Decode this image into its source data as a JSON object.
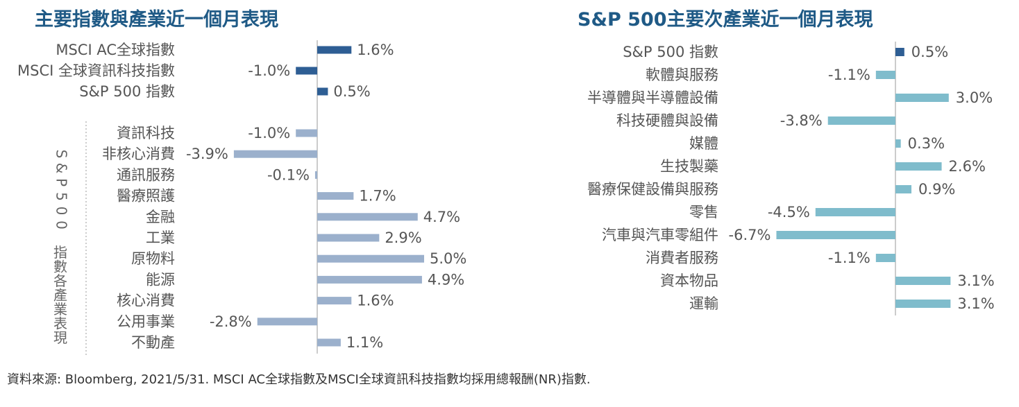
{
  "charts": {
    "left": {
      "title": "主要指數與產業近一個月表現",
      "side_label": "S&P500 指數各產業表現",
      "index_items": [
        {
          "label": "MSCI AC全球指數",
          "value": 1.6,
          "text": "1.6%"
        },
        {
          "label": "MSCI 全球資訊科技指數",
          "value": -1.0,
          "text": "-1.0%"
        },
        {
          "label": "S&P 500 指數",
          "value": 0.5,
          "text": "0.5%"
        }
      ],
      "sector_items": [
        {
          "label": "資訊科技",
          "value": -1.0,
          "text": "-1.0%"
        },
        {
          "label": "非核心消費",
          "value": -3.9,
          "text": "-3.9%"
        },
        {
          "label": "通訊服務",
          "value": -0.1,
          "text": "-0.1%"
        },
        {
          "label": "醫療照護",
          "value": 1.7,
          "text": "1.7%"
        },
        {
          "label": "金融",
          "value": 4.7,
          "text": "4.7%"
        },
        {
          "label": "工業",
          "value": 2.9,
          "text": "2.9%"
        },
        {
          "label": "原物料",
          "value": 5.0,
          "text": "5.0%"
        },
        {
          "label": "能源",
          "value": 4.9,
          "text": "4.9%"
        },
        {
          "label": "核心消費",
          "value": 1.6,
          "text": "1.6%"
        },
        {
          "label": "公用事業",
          "value": -2.8,
          "text": "-2.8%"
        },
        {
          "label": "不動產",
          "value": 1.1,
          "text": "1.1%"
        }
      ]
    },
    "right": {
      "title": "S&P 500主要次產業近一個月表現",
      "items": [
        {
          "label": "S&P 500 指數",
          "value": 0.5,
          "text": "0.5%",
          "highlight": true
        },
        {
          "label": "軟體與服務",
          "value": -1.1,
          "text": "-1.1%"
        },
        {
          "label": "半導體與半導體設備",
          "value": 3.0,
          "text": "3.0%"
        },
        {
          "label": "科技硬體與設備",
          "value": -3.8,
          "text": "-3.8%"
        },
        {
          "label": "媒體",
          "value": 0.3,
          "text": "0.3%"
        },
        {
          "label": "生技製藥",
          "value": 2.6,
          "text": "2.6%"
        },
        {
          "label": "醫療保健設備與服務",
          "value": 0.9,
          "text": "0.9%"
        },
        {
          "label": "零售",
          "value": -4.5,
          "text": "-4.5%"
        },
        {
          "label": "汽車與汽車零組件",
          "value": -6.7,
          "text": "-6.7%"
        },
        {
          "label": "消費者服務",
          "value": -1.1,
          "text": "-1.1%"
        },
        {
          "label": "資本物品",
          "value": 3.1,
          "text": "3.1%"
        },
        {
          "label": "運輸",
          "value": 3.1,
          "text": "3.1%"
        }
      ]
    }
  },
  "chart_data": [
    {
      "type": "bar",
      "orientation": "horizontal",
      "title": "主要指數與產業近一個月表現",
      "categories": [
        "MSCI AC全球指數",
        "MSCI 全球資訊科技指數",
        "S&P 500 指數",
        "資訊科技",
        "非核心消費",
        "通訊服務",
        "醫療照護",
        "金融",
        "工業",
        "原物料",
        "能源",
        "核心消費",
        "公用事業",
        "不動產"
      ],
      "values": [
        1.6,
        -1.0,
        0.5,
        -1.0,
        -3.9,
        -0.1,
        1.7,
        4.7,
        2.9,
        5.0,
        4.9,
        1.6,
        -2.8,
        1.1
      ],
      "unit": "%"
    },
    {
      "type": "bar",
      "orientation": "horizontal",
      "title": "S&P 500主要次產業近一個月表現",
      "categories": [
        "S&P 500 指數",
        "軟體與服務",
        "半導體與半導體設備",
        "科技硬體與設備",
        "媒體",
        "生技製藥",
        "醫療保健設備與服務",
        "零售",
        "汽車與汽車零組件",
        "消費者服務",
        "資本物品",
        "運輸"
      ],
      "values": [
        0.5,
        -1.1,
        3.0,
        -3.8,
        0.3,
        2.6,
        0.9,
        -4.5,
        -6.7,
        -1.1,
        3.1,
        3.1
      ],
      "unit": "%"
    }
  ],
  "colors": {
    "index_bar": "#2e5e94",
    "sector_bar": "#9bb0cc",
    "right_bar": "#7fbccc",
    "axis": "#bbbbbb"
  },
  "source": "資料來源: Bloomberg, 2021/5/31. MSCI AC全球指數及MSCI全球資訊科技指數均採用總報酬(NR)指數."
}
